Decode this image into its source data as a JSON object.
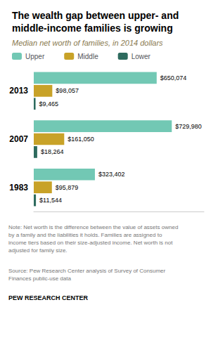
{
  "chart_data": {
    "type": "bar",
    "orientation": "horizontal",
    "title": "The wealth gap between upper- and\nmiddle-income families is growing",
    "subtitle": "Median net worth of families, in 2014 dollars",
    "categories": [
      "2013",
      "2007",
      "1983"
    ],
    "series": [
      {
        "name": "Upper",
        "color": "#72c8b4",
        "values": [
          650074,
          729980,
          323402
        ],
        "value_labels": [
          "$650,074",
          "$729,980",
          "$323,402"
        ]
      },
      {
        "name": "Middle",
        "color": "#c8a228",
        "values": [
          98057,
          161050,
          95879
        ],
        "value_labels": [
          "$98,057",
          "$161,050",
          "$95,879"
        ]
      },
      {
        "name": "Lower",
        "color": "#2e6b5e",
        "values": [
          9465,
          18264,
          11544
        ],
        "value_labels": [
          "$9,465",
          "$18,264",
          "$11,544"
        ]
      }
    ],
    "xlim": [
      0,
      900000
    ],
    "grid": false,
    "legend": "top",
    "data_labels": true,
    "tick_labels": "y",
    "annotations": [
      "Note: Net worth is the difference between the value of assets owned\nby a family and the liabilities it holds. Families are assigned to\nincome tiers based on their size-adjusted income. Net worth is not\nadjusted for family size.",
      "Source: Pew Research Center analysis of Survey of Consumer\nFinances public-use data",
      "PEW RESEARCH CENTER"
    ]
  }
}
